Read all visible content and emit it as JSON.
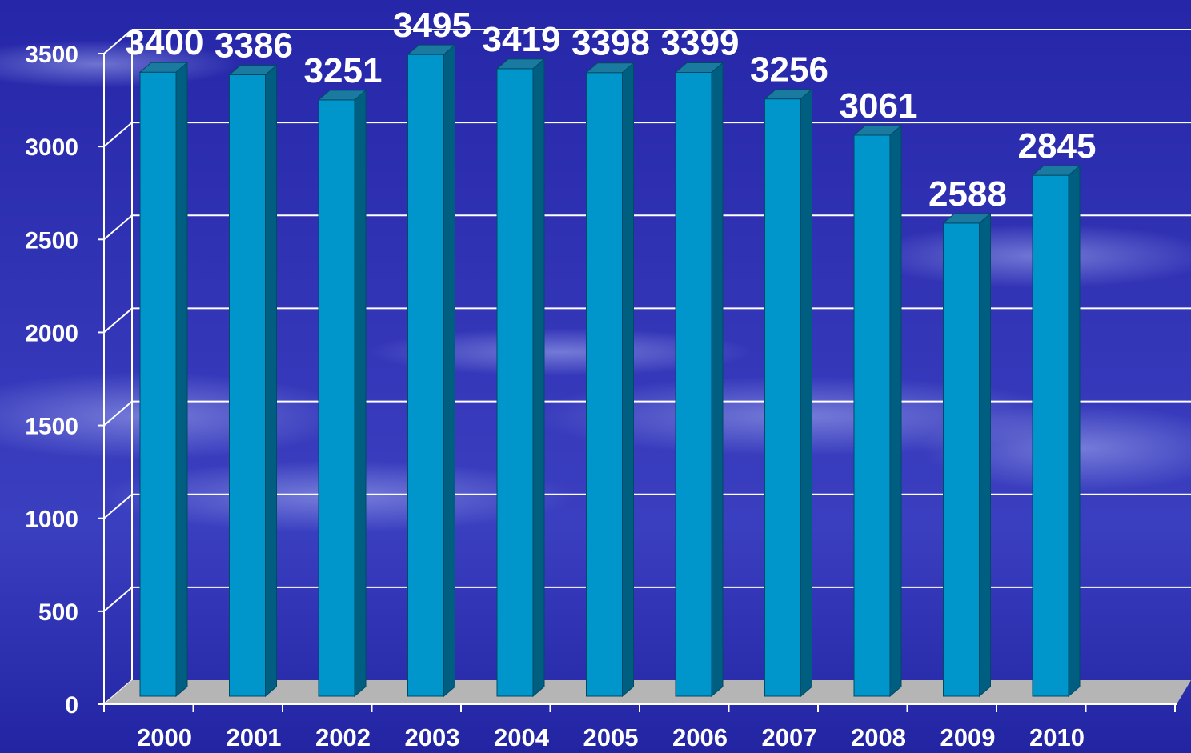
{
  "chart_data": {
    "type": "bar",
    "categories": [
      "2000",
      "2001",
      "2002",
      "2003",
      "2004",
      "2005",
      "2006",
      "2007",
      "2008",
      "2009",
      "2010"
    ],
    "values": [
      3400,
      3386,
      3251,
      3495,
      3419,
      3398,
      3399,
      3256,
      3061,
      2588,
      2845
    ],
    "data_labels": [
      "3400",
      "3386",
      "3251",
      "3495",
      "3419",
      "3398",
      "3399",
      "3256",
      "3061",
      "2588",
      "2845"
    ],
    "yticks": [
      "0",
      "500",
      "1000",
      "1500",
      "2000",
      "2500",
      "3000",
      "3500"
    ],
    "ylim": [
      0,
      3500
    ],
    "grid": true,
    "colors": {
      "bar_front": "#0096cc",
      "bar_side": "#005f80",
      "bar_top": "#1a7aa0",
      "floor": "#b5b5b5",
      "grid": "#ffffff",
      "background": "#2a2bb0"
    }
  }
}
